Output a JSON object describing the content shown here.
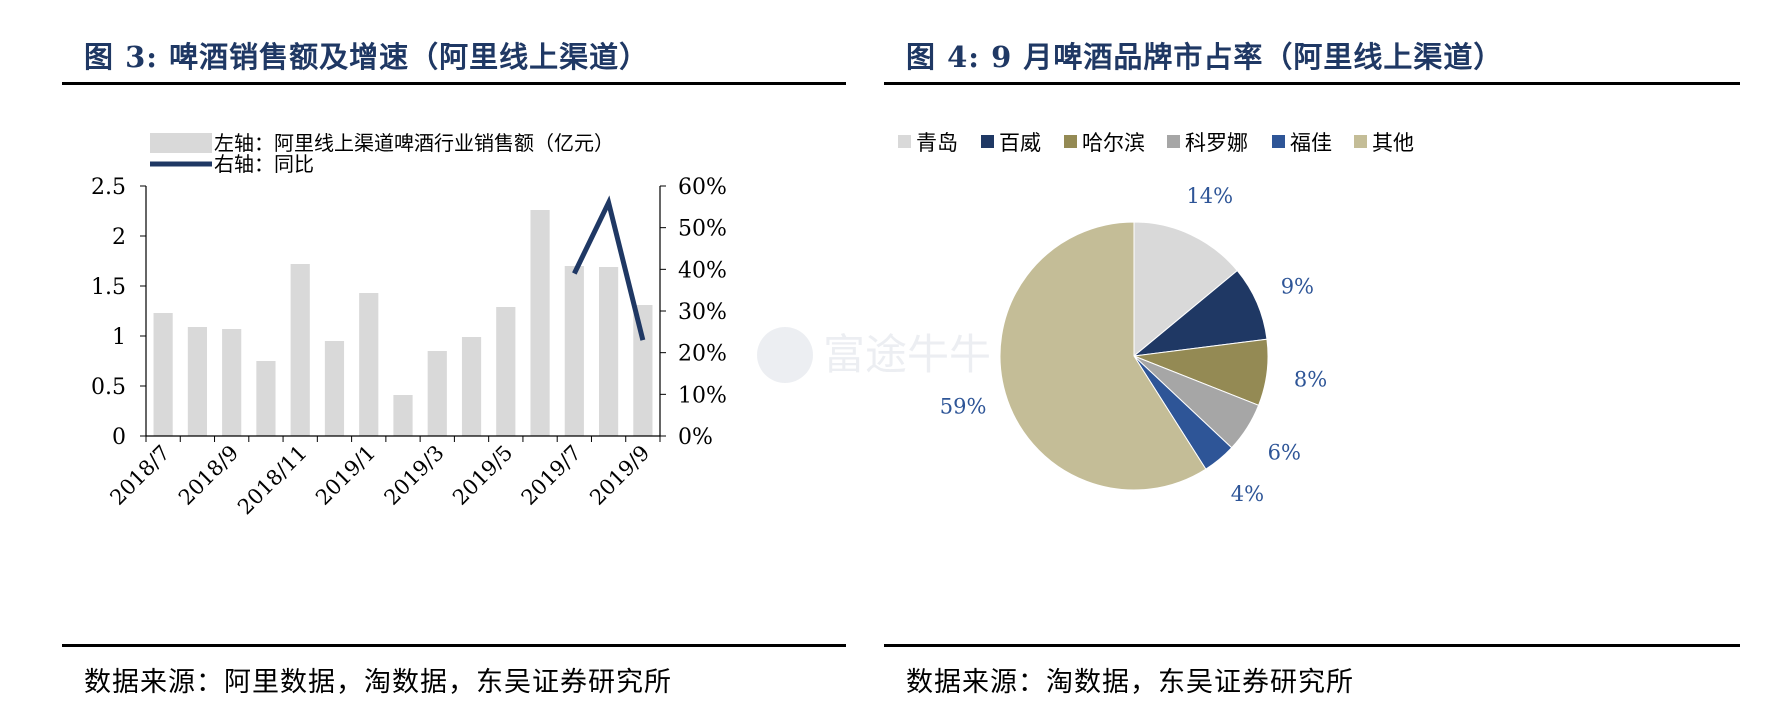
{
  "left": {
    "title": "图 3:  啤酒销售额及增速（阿里线上渠道）",
    "source": "数据来源：阿里数据，淘数据，东吴证券研究所"
  },
  "right": {
    "title": "图 4:  9 月啤酒品牌市占率（阿里线上渠道）",
    "source": "数据来源：淘数据，东吴证券研究所"
  },
  "chart_data": [
    {
      "type": "bar",
      "categories": [
        "2018/7",
        "2018/8",
        "2018/9",
        "2018/10",
        "2018/11",
        "2018/12",
        "2019/1",
        "2019/2",
        "2019/3",
        "2019/4",
        "2019/5",
        "2019/6",
        "2019/7",
        "2019/8",
        "2019/9"
      ],
      "x_tick_labels": [
        "2018/7",
        "2018/9",
        "2018/11",
        "2019/1",
        "2019/3",
        "2019/5",
        "2019/7",
        "2019/9"
      ],
      "series": [
        {
          "name": "左轴：阿里线上渠道啤酒行业销售额（亿元）",
          "type": "bar",
          "axis": "left",
          "color": "#d9d9d9",
          "values": [
            1.23,
            1.09,
            1.07,
            0.75,
            1.72,
            0.95,
            1.43,
            0.41,
            0.85,
            0.99,
            1.29,
            2.26,
            1.7,
            1.69,
            1.31
          ]
        },
        {
          "name": "右轴：同比",
          "type": "line",
          "axis": "right",
          "color": "#1f3864",
          "values": [
            null,
            null,
            null,
            null,
            null,
            null,
            null,
            null,
            null,
            null,
            null,
            null,
            0.39,
            0.56,
            0.23
          ]
        }
      ],
      "ylim_left": [
        0,
        2.5
      ],
      "yticks_left": [
        "0",
        "0.5",
        "1",
        "1.5",
        "2",
        "2.5"
      ],
      "ylim_right": [
        0,
        0.6
      ],
      "yticks_right": [
        "0%",
        "10%",
        "20%",
        "30%",
        "40%",
        "50%",
        "60%"
      ],
      "legend_position": "top-left"
    },
    {
      "type": "pie",
      "labels": [
        "青岛",
        "百威",
        "哈尔滨",
        "科罗娜",
        "福佳",
        "其他"
      ],
      "values": [
        14,
        9,
        8,
        6,
        4,
        59
      ],
      "value_labels": [
        "14%",
        "9%",
        "8%",
        "6%",
        "4%",
        "59%"
      ],
      "colors": [
        "#d9d9d9",
        "#1f3864",
        "#948a54",
        "#a6a6a6",
        "#2e5597",
        "#c4bd97"
      ],
      "label_color": "#2e5597",
      "legend_position": "top"
    }
  ],
  "watermark": "富途牛牛"
}
